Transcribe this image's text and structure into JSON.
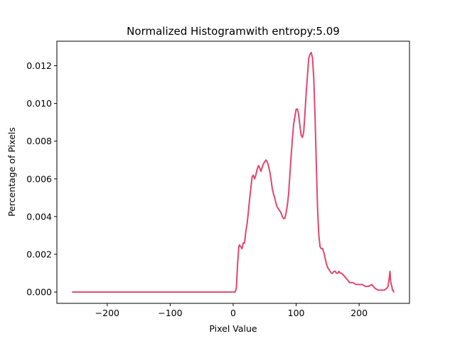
{
  "chart_data": {
    "type": "line",
    "title": "Normalized Histogramwith entropy:5.09",
    "xlabel": "Pixel Value",
    "ylabel": "Percentage of Pixels",
    "xlim": [
      -280,
      280
    ],
    "ylim": [
      -0.0006,
      0.0133
    ],
    "xticks": [
      -200,
      -100,
      0,
      100,
      200
    ],
    "xtick_labels": [
      "−200",
      "−100",
      "0",
      "100",
      "200"
    ],
    "yticks": [
      0.0,
      0.002,
      0.004,
      0.006,
      0.008,
      0.01,
      0.012
    ],
    "ytick_labels": [
      "0.000",
      "0.002",
      "0.004",
      "0.006",
      "0.008",
      "0.010",
      "0.012"
    ],
    "grid": false,
    "series": [
      {
        "color": "#e0476e",
        "x": [
          -255,
          -150,
          -50,
          0,
          3,
          5,
          7,
          9,
          10,
          12,
          14,
          16,
          18,
          20,
          22,
          24,
          26,
          28,
          30,
          32,
          34,
          36,
          38,
          40,
          42,
          44,
          46,
          48,
          50,
          52,
          54,
          56,
          58,
          60,
          62,
          64,
          66,
          68,
          70,
          72,
          74,
          76,
          78,
          80,
          82,
          84,
          86,
          88,
          90,
          92,
          94,
          96,
          98,
          100,
          102,
          104,
          106,
          108,
          110,
          112,
          114,
          116,
          118,
          120,
          122,
          124,
          126,
          128,
          130,
          132,
          134,
          136,
          138,
          140,
          142,
          144,
          146,
          148,
          150,
          152,
          154,
          156,
          158,
          160,
          162,
          164,
          166,
          168,
          170,
          172,
          175,
          180,
          185,
          190,
          195,
          200,
          205,
          210,
          215,
          220,
          225,
          230,
          235,
          240,
          244,
          246,
          248,
          249,
          250,
          251,
          252,
          253,
          254,
          255
        ],
        "y": [
          0.0,
          0.0,
          0.0,
          0.0,
          0.0,
          0.0002,
          0.0015,
          0.0024,
          0.0025,
          0.0024,
          0.0023,
          0.0026,
          0.0026,
          0.0032,
          0.0036,
          0.0042,
          0.0049,
          0.0055,
          0.0061,
          0.0062,
          0.006,
          0.0062,
          0.0065,
          0.0067,
          0.0066,
          0.0064,
          0.0066,
          0.0068,
          0.0069,
          0.007,
          0.0069,
          0.0067,
          0.0064,
          0.006,
          0.0055,
          0.0052,
          0.005,
          0.0047,
          0.0045,
          0.0044,
          0.0043,
          0.0042,
          0.004,
          0.0039,
          0.0039,
          0.0042,
          0.0046,
          0.0052,
          0.0062,
          0.0072,
          0.0081,
          0.0089,
          0.0093,
          0.0097,
          0.0097,
          0.0094,
          0.0088,
          0.0083,
          0.0082,
          0.0085,
          0.0095,
          0.0106,
          0.0115,
          0.0124,
          0.0126,
          0.0127,
          0.0124,
          0.0113,
          0.0093,
          0.0068,
          0.0044,
          0.003,
          0.0024,
          0.0023,
          0.0023,
          0.0021,
          0.0018,
          0.0015,
          0.0013,
          0.0012,
          0.0011,
          0.001,
          0.001,
          0.0011,
          0.0011,
          0.001,
          0.001,
          0.0011,
          0.001,
          0.001,
          0.0009,
          0.0007,
          0.0005,
          0.0005,
          0.0004,
          0.0004,
          0.0004,
          0.0003,
          0.0003,
          0.0004,
          0.0002,
          0.0001,
          0.0001,
          0.0001,
          0.0002,
          0.0003,
          0.0008,
          0.0011,
          0.0006,
          0.0004,
          0.0003,
          0.0001,
          0.0001,
          0.0
        ]
      }
    ]
  }
}
